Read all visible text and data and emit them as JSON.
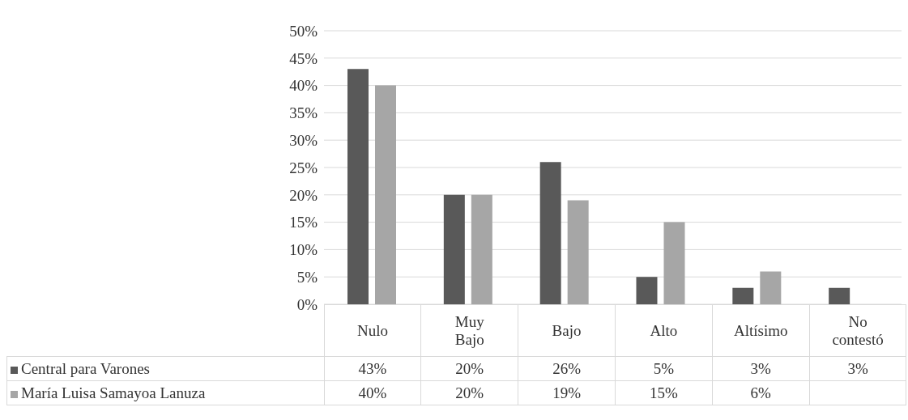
{
  "chart_data": {
    "type": "bar",
    "categories": [
      "Nulo",
      "Muy Bajo",
      "Bajo",
      "Alto",
      "Altísimo",
      "No contestó"
    ],
    "series": [
      {
        "name": "Central para Varones",
        "color": "#595959",
        "values": [
          43,
          20,
          26,
          5,
          3,
          3
        ],
        "value_labels": [
          "43%",
          "20%",
          "26%",
          "5%",
          "3%",
          "3%"
        ]
      },
      {
        "name": "María Luisa Samayoa Lanuza",
        "color": "#a6a6a6",
        "values": [
          40,
          20,
          19,
          15,
          6,
          null
        ],
        "value_labels": [
          "40%",
          "20%",
          "19%",
          "15%",
          "6%",
          null
        ]
      }
    ],
    "ylim": [
      0,
      50
    ],
    "yticks": [
      {
        "value": 0,
        "label": "0%"
      },
      {
        "value": 5,
        "label": "5%"
      },
      {
        "value": 10,
        "label": "10%"
      },
      {
        "value": 15,
        "label": "15%"
      },
      {
        "value": 20,
        "label": "20%"
      },
      {
        "value": 25,
        "label": "25%"
      },
      {
        "value": 30,
        "label": "30%"
      },
      {
        "value": 35,
        "label": "35%"
      },
      {
        "value": 40,
        "label": "40%"
      },
      {
        "value": 45,
        "label": "45%"
      },
      {
        "value": 50,
        "label": "50%"
      }
    ],
    "grid": "y",
    "legend": "bottom"
  }
}
